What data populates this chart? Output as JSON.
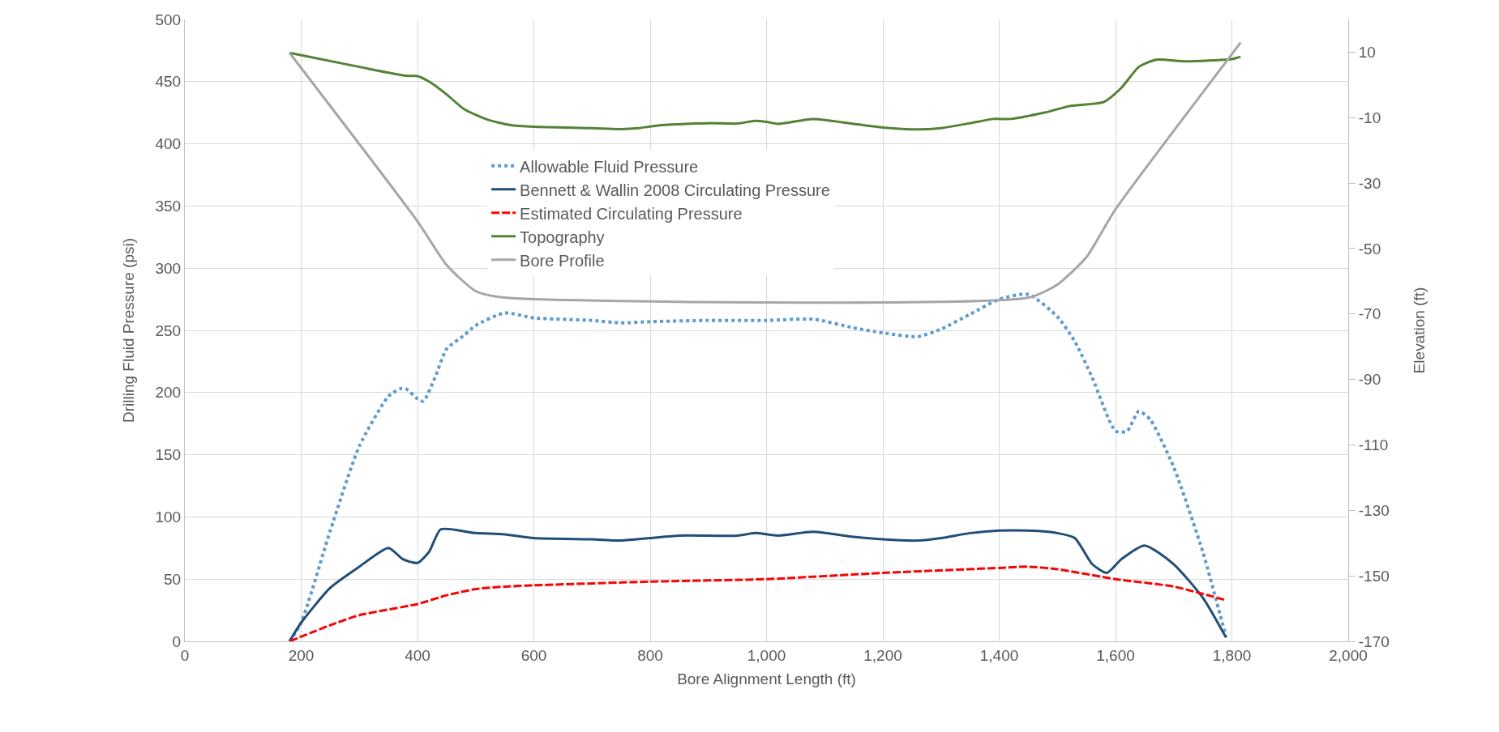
{
  "chart_data": {
    "type": "line",
    "xlabel": "Bore Alignment Length (ft)",
    "ylabel": "Drilling Fluid Pressure (psi)",
    "y2label": "Elevation (ft)",
    "xlim": [
      0,
      2000
    ],
    "xticks": [
      0,
      200,
      400,
      600,
      800,
      {
        "value": 1000,
        "label": "1,000"
      },
      {
        "value": 1200,
        "label": "1,200"
      },
      {
        "value": 1400,
        "label": "1,400"
      },
      {
        "value": 1600,
        "label": "1,600"
      },
      {
        "value": 1800,
        "label": "1,800"
      },
      {
        "value": 2000,
        "label": "2,000"
      }
    ],
    "ylim": [
      0,
      500
    ],
    "yticks": [
      0,
      50,
      100,
      150,
      200,
      250,
      300,
      350,
      400,
      450,
      500
    ],
    "y2lim": [
      -170,
      20
    ],
    "y2ticks": [
      -170,
      -150,
      -130,
      -110,
      -90,
      -70,
      -50,
      -30,
      -10,
      10
    ],
    "grid": true,
    "legend": "top center",
    "marker": "none",
    "series": [
      {
        "name": "Allowable Fluid Pressure",
        "color": "#5b9bd5",
        "line_style": "dotted",
        "x": [
          180,
          200,
          250,
          300,
          350,
          370,
          380,
          400,
          410,
          430,
          450,
          480,
          500,
          550,
          600,
          700,
          750,
          800,
          900,
          1000,
          1080,
          1150,
          1200,
          1260,
          1300,
          1350,
          1400,
          1450,
          1500,
          1530,
          1560,
          1600,
          1620,
          1640,
          1660,
          1700,
          1750,
          1780,
          1790
        ],
        "values": [
          0,
          15,
          89,
          157,
          197,
          203,
          203,
          195,
          193,
          212,
          235,
          246,
          254,
          264,
          260,
          258,
          256,
          257,
          258,
          258,
          259,
          252,
          248,
          245,
          251,
          263,
          275,
          279,
          261,
          241,
          212,
          169,
          169,
          185,
          178,
          140,
          72,
          21,
          4
        ]
      },
      {
        "name": "Bennett & Wallin 2008 Circulating Pressure",
        "color": "#1f4e79",
        "line_style": "solid",
        "x": [
          180,
          200,
          250,
          300,
          350,
          375,
          400,
          420,
          440,
          500,
          550,
          600,
          700,
          750,
          800,
          850,
          950,
          980,
          1020,
          1080,
          1150,
          1200,
          1260,
          1300,
          1350,
          1400,
          1450,
          1500,
          1530,
          1560,
          1585,
          1610,
          1650,
          1700,
          1750,
          1790
        ],
        "values": [
          0,
          15,
          43,
          60,
          75,
          66,
          63,
          72,
          90,
          87,
          86,
          83,
          82,
          81,
          83,
          85,
          85,
          87,
          85,
          88,
          84,
          82,
          81,
          83,
          87,
          89,
          89,
          87,
          83,
          62,
          55,
          66,
          77,
          62,
          35,
          3
        ]
      },
      {
        "name": "Estimated Circulating Pressure",
        "color": "#ff0000",
        "line_style": "dashed",
        "x": [
          180,
          250,
          300,
          400,
          450,
          500,
          550,
          600,
          800,
          1000,
          1200,
          1400,
          1450,
          1500,
          1600,
          1700,
          1790
        ],
        "values": [
          0,
          13,
          21,
          30,
          37,
          42,
          44,
          45,
          48,
          50,
          55,
          59,
          60,
          58,
          50,
          44,
          33
        ]
      },
      {
        "name": "Topography",
        "color": "#548235",
        "line_style": "solid",
        "axis": "y2",
        "x": [
          180,
          300,
          380,
          400,
          420,
          450,
          480,
          520,
          560,
          600,
          700,
          750,
          780,
          820,
          900,
          950,
          980,
          1000,
          1020,
          1080,
          1150,
          1200,
          1260,
          1300,
          1350,
          1390,
          1420,
          1480,
          1520,
          1580,
          1610,
          1640,
          1670,
          1720,
          1800,
          1815
        ],
        "values": [
          9.8,
          5.5,
          2.8,
          2.7,
          1,
          -2.9,
          -7.4,
          -10.6,
          -12.3,
          -12.8,
          -13.2,
          -13.5,
          -13.2,
          -12.3,
          -11.7,
          -11.8,
          -11,
          -11.3,
          -11.9,
          -10.4,
          -11.9,
          -13,
          -13.6,
          -13.2,
          -11.7,
          -10.4,
          -10.4,
          -8.4,
          -6.5,
          -5.2,
          -0.9,
          5.5,
          7.7,
          7.2,
          7.9,
          8.6
        ]
      },
      {
        "name": "Bore Profile",
        "color": "#a6a6a6",
        "line_style": "solid",
        "axis": "y2",
        "x": [
          180,
          400,
          450,
          500,
          550,
          1450,
          1500,
          1550,
          1600,
          1800,
          1815
        ],
        "values": [
          9.8,
          -41.7,
          -55,
          -63,
          -65,
          -65,
          -61,
          -52.6,
          -38,
          9.4,
          12.9
        ]
      }
    ]
  }
}
